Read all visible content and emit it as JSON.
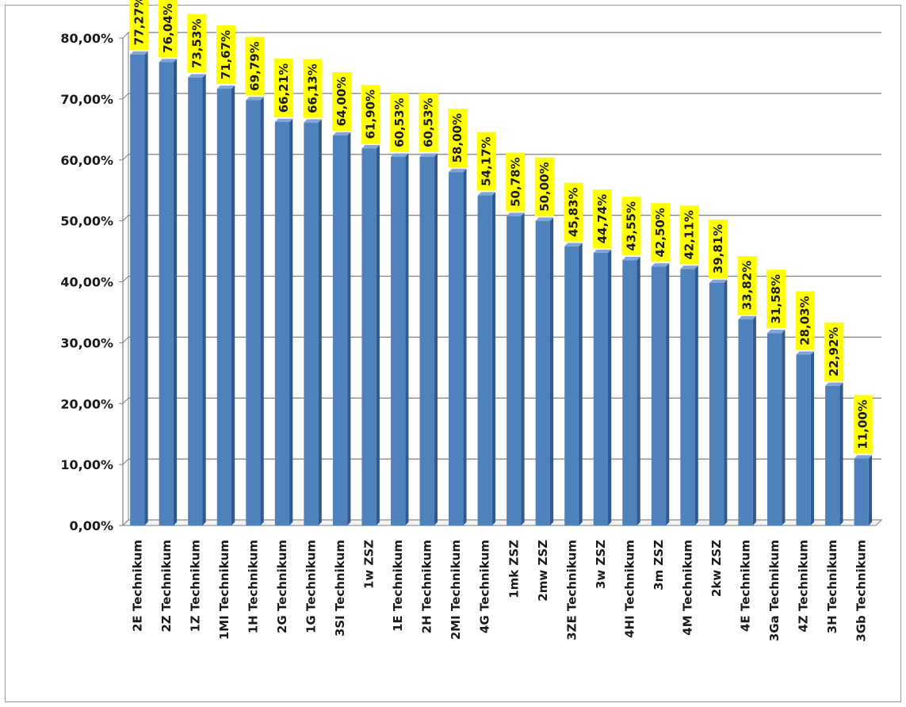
{
  "chart_data": {
    "type": "bar",
    "title": "",
    "xlabel": "",
    "ylabel": "",
    "ylim": [
      0,
      80
    ],
    "y_ticks": [
      "0,00%",
      "10,00%",
      "20,00%",
      "30,00%",
      "40,00%",
      "50,00%",
      "60,00%",
      "70,00%",
      "80,00%"
    ],
    "grid": true,
    "colors": {
      "bar": "#4f81bd",
      "bar_side": "#2e5a8f",
      "bar_top": "#7ea6d8",
      "label_bg": "#ffff00",
      "grid": "#7f7f7f"
    },
    "categories": [
      "2E Technikum",
      "2Z Technikum",
      "1Z Technikum",
      "1MI Technikum",
      "1H Technikum",
      "2G Technikum",
      "1G Technikum",
      "3SI Technikum",
      "1w ZSZ",
      "1E Technikum",
      "2H Technikum",
      "2MI Technikum",
      "4G Technikum",
      "1mk ZSZ",
      "2mw ZSZ",
      "3ZE Technikum",
      "3w ZSZ",
      "4HI Technikum",
      "3m ZSZ",
      "4M Technikum",
      "2kw ZSZ",
      "4E Technikum",
      "3Ga Technikum",
      "4Z Technikum",
      "3H Technikum",
      "3Gb Technikum"
    ],
    "values": [
      77.27,
      76.04,
      73.53,
      71.67,
      69.79,
      66.21,
      66.13,
      64.0,
      61.9,
      60.53,
      60.53,
      58.0,
      54.17,
      50.78,
      50.0,
      45.83,
      44.74,
      43.55,
      42.5,
      42.11,
      39.81,
      33.82,
      31.58,
      28.03,
      22.92,
      11.0
    ],
    "data_labels": [
      "77,27%",
      "76,04%",
      "73,53%",
      "71,67%",
      "69,79%",
      "66,21%",
      "66,13%",
      "64,00%",
      "61,90%",
      "60,53%",
      "60,53%",
      "58,00%",
      "54,17%",
      "50,78%",
      "50,00%",
      "45,83%",
      "44,74%",
      "43,55%",
      "42,50%",
      "42,11%",
      "39,81%",
      "33,82%",
      "31,58%",
      "28,03%",
      "22,92%",
      "11,00%"
    ]
  }
}
